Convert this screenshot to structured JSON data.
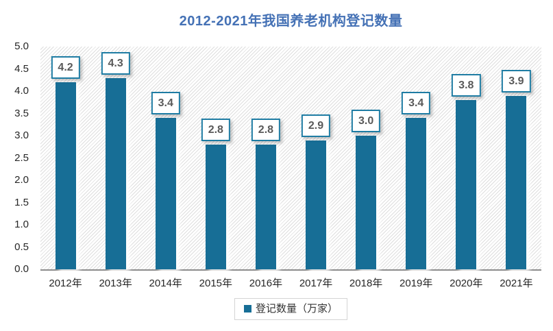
{
  "chart_data": {
    "type": "bar",
    "title": "2012-2021年我国养老机构登记数量",
    "categories": [
      "2012年",
      "2013年",
      "2014年",
      "2015年",
      "2016年",
      "2017年",
      "2018年",
      "2019年",
      "2020年",
      "2021年"
    ],
    "values": [
      4.2,
      4.3,
      3.4,
      2.8,
      2.8,
      2.9,
      3.0,
      3.4,
      3.8,
      3.9
    ],
    "value_labels": [
      "4.2",
      "4.3",
      "3.4",
      "2.8",
      "2.8",
      "2.9",
      "3.0",
      "3.4",
      "3.8",
      "3.9"
    ],
    "series_name": "登记数量（万家）",
    "legend_marker": "square",
    "legend_position": "bottom",
    "ylim": [
      0.0,
      5.0
    ],
    "ytick_step": 0.5,
    "yticks": [
      "5.0",
      "4.5",
      "4.0",
      "3.5",
      "3.0",
      "2.5",
      "2.0",
      "1.5",
      "1.0",
      "0.5",
      "0.0"
    ],
    "grid": false,
    "plot_background": "diagonal-hatch",
    "colors": {
      "bar": "#176E96",
      "title": "#4471B5",
      "value_label_border": "#1E7CA3",
      "value_label_text": "#595959",
      "axis_line": "#8C8C8C",
      "tick_text": "#262626",
      "hatch_line": "#DEDEDE",
      "legend_border": "#D4D4D4"
    }
  }
}
